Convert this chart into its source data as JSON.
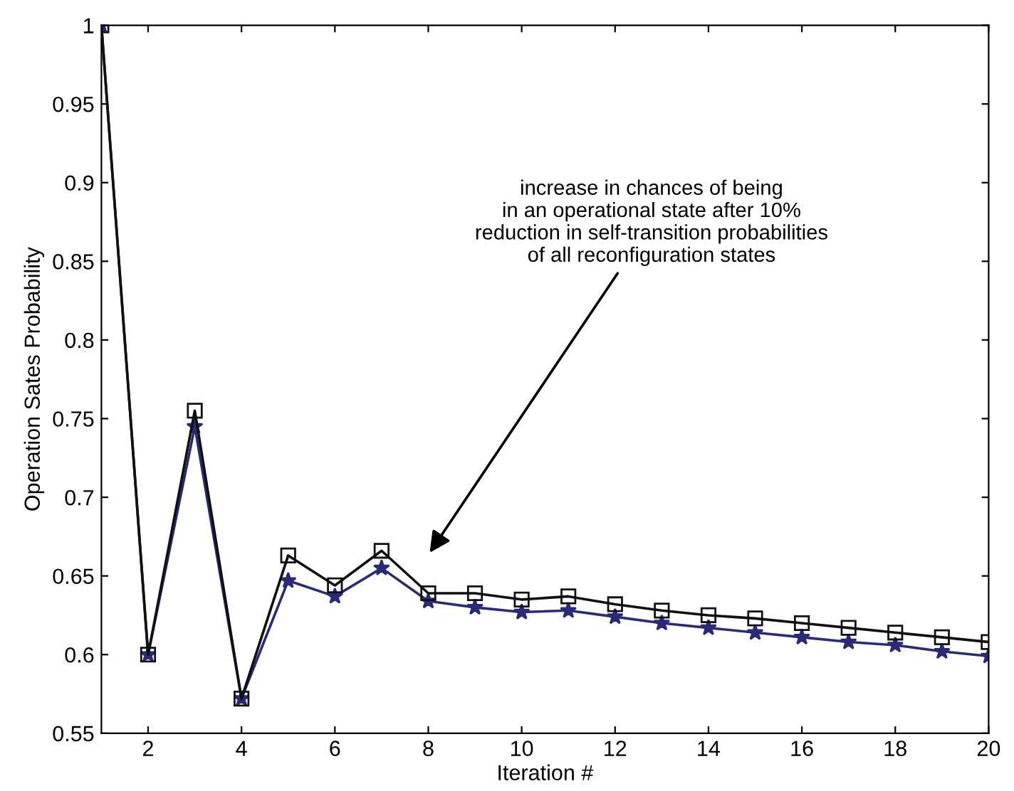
{
  "chart_data": {
    "type": "line",
    "xlabel": "Iteration #",
    "ylabel": "Operation Sates Probability",
    "x": [
      1,
      2,
      3,
      4,
      5,
      6,
      7,
      8,
      9,
      10,
      11,
      12,
      13,
      14,
      15,
      16,
      17,
      18,
      19,
      20
    ],
    "series": [
      {
        "color": "#111111",
        "marker": "square",
        "values": [
          1.0,
          0.6,
          0.755,
          0.572,
          0.663,
          0.644,
          0.666,
          0.639,
          0.639,
          0.635,
          0.637,
          0.632,
          0.628,
          0.625,
          0.623,
          0.62,
          0.617,
          0.614,
          0.611,
          0.608
        ]
      },
      {
        "color": "#2a2a78",
        "marker": "star",
        "values": [
          1.0,
          0.6,
          0.745,
          0.572,
          0.647,
          0.637,
          0.655,
          0.634,
          0.63,
          0.627,
          0.628,
          0.624,
          0.62,
          0.617,
          0.614,
          0.611,
          0.608,
          0.606,
          0.602,
          0.599
        ]
      }
    ],
    "xlim": [
      1,
      20
    ],
    "xticks": [
      2,
      4,
      6,
      8,
      10,
      12,
      14,
      16,
      18,
      20
    ],
    "ylim": [
      0.55,
      1
    ],
    "yticks": [
      0.55,
      0.6,
      0.65,
      0.7,
      0.75,
      0.8,
      0.85,
      0.9,
      0.95,
      1
    ],
    "grid": false,
    "legend": false,
    "line_style": "solid",
    "annotations": [
      "increase in chances of being\nin an operational state after 10%\nreduction in self-transition probabilities\nof all reconfiguration states"
    ]
  }
}
